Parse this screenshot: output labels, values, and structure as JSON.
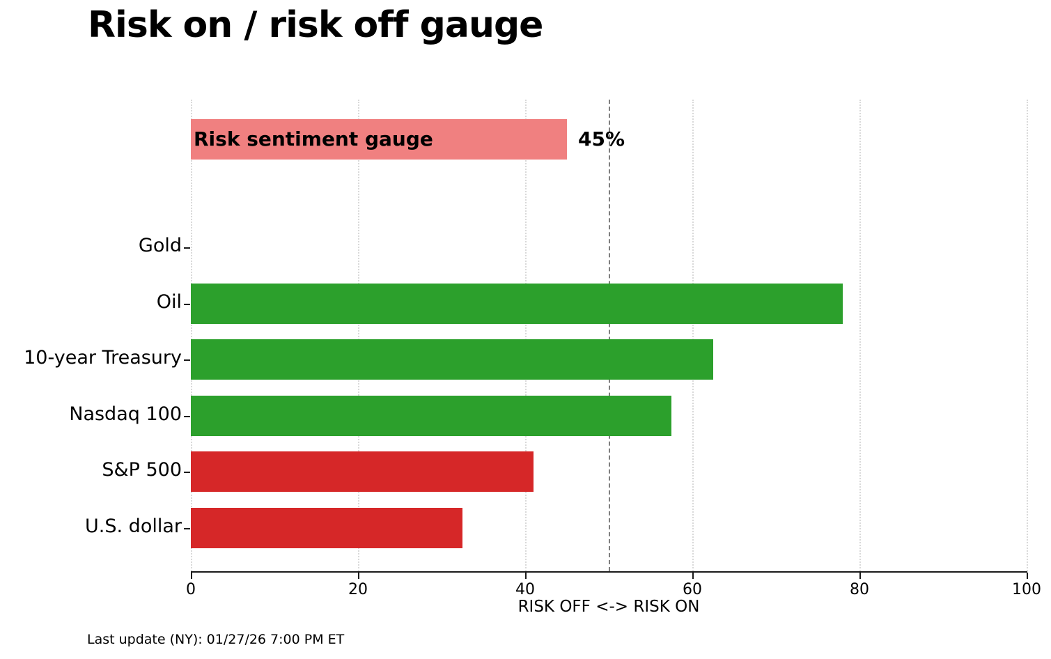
{
  "title": "Risk on / risk off gauge",
  "footer": "Last update (NY): 01/27/26 7:00 PM ET",
  "chart_data": {
    "type": "bar",
    "orientation": "horizontal",
    "title": "Risk on / risk off gauge",
    "xlabel": "RISK OFF <-> RISK ON",
    "xlim": [
      0,
      100
    ],
    "xticks": [
      "0",
      "20",
      "40",
      "60",
      "80",
      "100"
    ],
    "xtick_values": [
      0,
      20,
      40,
      60,
      80,
      100
    ],
    "grid": "vertical-dotted",
    "threshold_value": 50,
    "gauge": {
      "label": "Risk sentiment gauge",
      "value": 45,
      "value_label": "45%",
      "color": "#f08080"
    },
    "categories": [
      "Gold",
      "Oil",
      "10-year Treasury",
      "Nasdaq 100",
      "S&P 500",
      "U.S. dollar"
    ],
    "values": [
      0,
      78,
      62.5,
      57.5,
      41,
      32.5
    ],
    "bar_colors": [
      "#2ca02c",
      "#2ca02c",
      "#2ca02c",
      "#2ca02c",
      "#d62728",
      "#d62728"
    ],
    "colors": {
      "risk_on": "#2ca02c",
      "risk_off": "#d62728",
      "gauge": "#f08080",
      "threshold_line": "#7f7f7f",
      "gridline": "#d9d9d9",
      "axis": "#1a1a1a"
    }
  }
}
